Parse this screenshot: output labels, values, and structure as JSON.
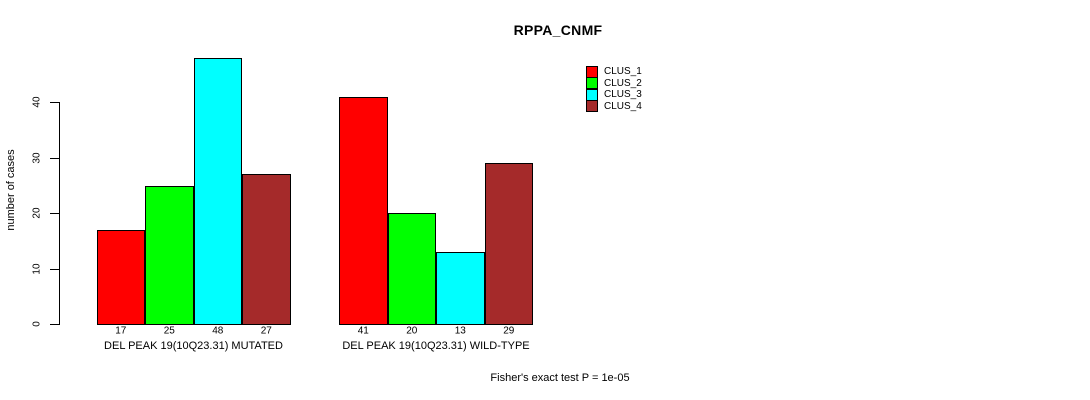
{
  "title": "RPPA_CNMF",
  "y_axis": {
    "label": "number of cases",
    "tick_labels": [
      "0",
      "10",
      "20",
      "30",
      "40"
    ]
  },
  "footer": "Fisher's exact test P = 1e-05",
  "legend": {
    "items": [
      {
        "label": "CLUS_1",
        "color": "#FF0000"
      },
      {
        "label": "CLUS_2",
        "color": "#00FF00"
      },
      {
        "label": "CLUS_3",
        "color": "#00FFFF"
      },
      {
        "label": "CLUS_4",
        "color": "#A52A2A"
      }
    ]
  },
  "chart_data": {
    "type": "bar",
    "title": "RPPA_CNMF",
    "ylabel": "number of cases",
    "ylim": [
      0,
      48
    ],
    "yticks": [
      0,
      10,
      20,
      30,
      40
    ],
    "grid": false,
    "legend_position": "top-right-outside",
    "categories": [
      "DEL PEAK 19(10Q23.31) MUTATED",
      "DEL PEAK 19(10Q23.31) WILD-TYPE"
    ],
    "series": [
      {
        "name": "CLUS_1",
        "color": "#FF0000",
        "values": [
          17,
          41
        ]
      },
      {
        "name": "CLUS_2",
        "color": "#00FF00",
        "values": [
          25,
          20
        ]
      },
      {
        "name": "CLUS_3",
        "color": "#00FFFF",
        "values": [
          48,
          13
        ]
      },
      {
        "name": "CLUS_4",
        "color": "#A52A2A",
        "values": [
          27,
          29
        ]
      }
    ],
    "bar_value_labels": [
      [
        17,
        25,
        48,
        27
      ],
      [
        41,
        20,
        13,
        29
      ]
    ],
    "annotation": "Fisher's exact test P = 1e-05"
  }
}
